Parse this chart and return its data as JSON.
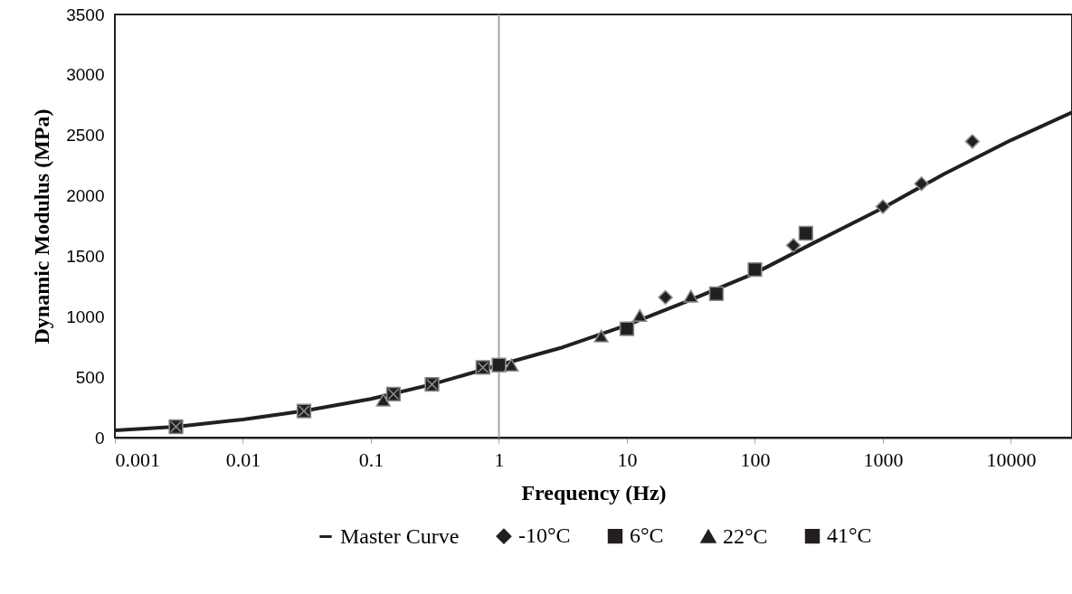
{
  "chart_data": {
    "type": "scatter",
    "xlabel": "Frequency (Hz)",
    "ylabel": "Dynamic Modulus (MPa)",
    "log": "x",
    "xlim": [
      0.001,
      30000
    ],
    "xticks": [
      0.001,
      0.01,
      0.1,
      1,
      10,
      100,
      1000,
      10000
    ],
    "ylim": [
      0,
      3500
    ],
    "yticks": [
      0,
      500,
      1000,
      1500,
      2000,
      2500,
      3000,
      3500
    ],
    "grid": false,
    "legend": "bottom",
    "ref_lines": [
      {
        "axis": "x",
        "value": 1,
        "color": "#a6a6a6"
      }
    ],
    "series": [
      {
        "name": "Master Curve",
        "type": "line",
        "color": "#231f20",
        "marker": "none",
        "x": [
          0.001,
          0.003,
          0.01,
          0.03,
          0.1,
          0.3,
          1,
          3,
          10,
          30,
          100,
          300,
          1000,
          3000,
          10000,
          30000
        ],
        "values": [
          60,
          90,
          150,
          220,
          320,
          440,
          600,
          740,
          930,
          1130,
          1360,
          1620,
          1900,
          2180,
          2460,
          2690
        ]
      },
      {
        "name": "-10°C",
        "type": "scatter",
        "color": "#231f20",
        "marker": "diamond",
        "x": [
          20,
          200,
          1000,
          2000,
          5000
        ],
        "values": [
          1160,
          1590,
          1910,
          2100,
          2450
        ]
      },
      {
        "name": "6°C",
        "type": "scatter",
        "color": "#231f20",
        "marker": "square",
        "x": [
          1,
          10,
          50,
          100,
          250
        ],
        "values": [
          600,
          900,
          1190,
          1390,
          1690
        ]
      },
      {
        "name": "22°C",
        "type": "scatter",
        "color": "#231f20",
        "marker": "triangle",
        "x": [
          0.125,
          1.25,
          6.3,
          12.6,
          31.6
        ],
        "values": [
          310,
          600,
          840,
          1010,
          1170
        ]
      },
      {
        "name": "41°C",
        "type": "scatter",
        "color": "#231f20",
        "marker": "cross",
        "x": [
          0.003,
          0.03,
          0.15,
          0.3,
          0.75
        ],
        "values": [
          90,
          220,
          360,
          440,
          580
        ]
      }
    ]
  }
}
